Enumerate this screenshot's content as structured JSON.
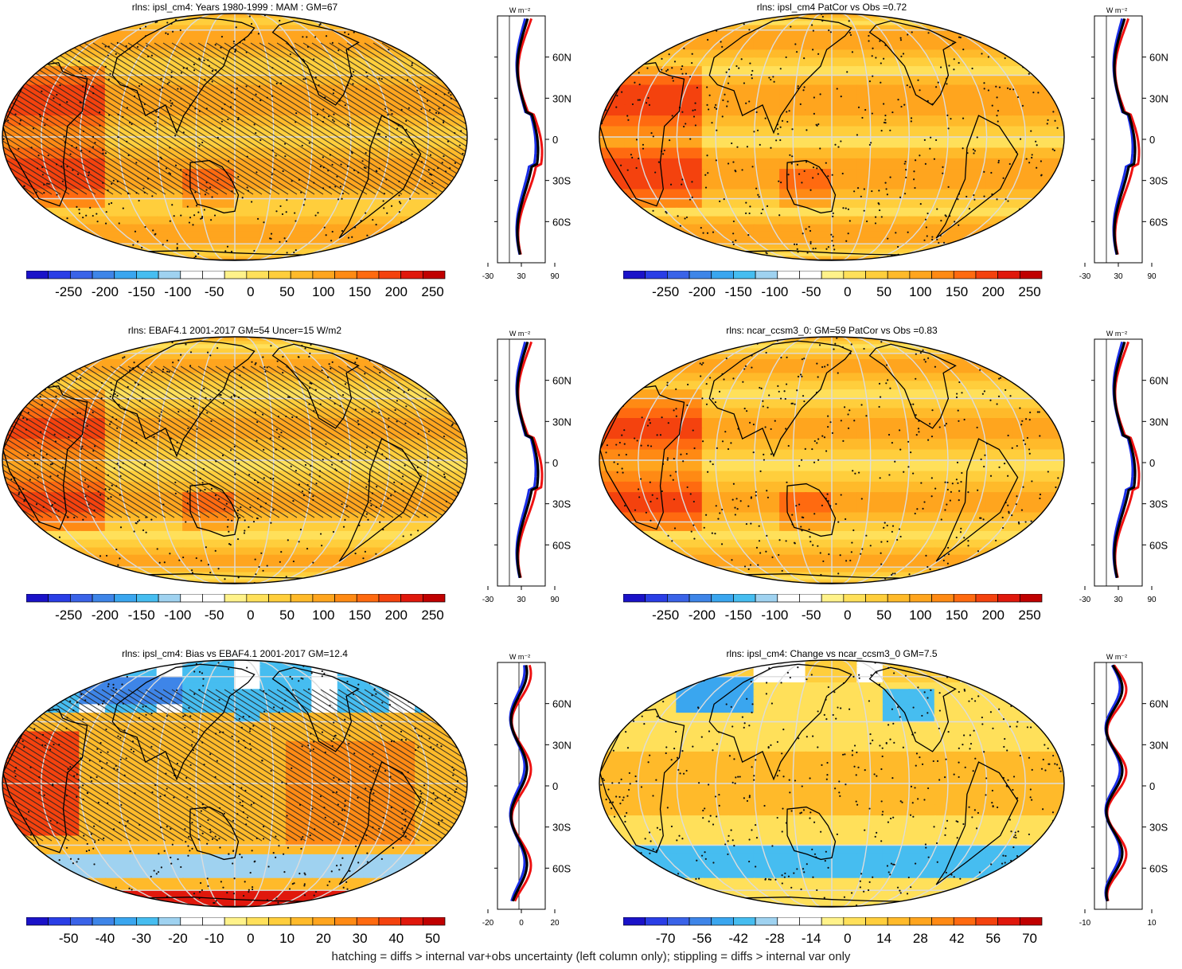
{
  "panels": [
    {
      "title": "rlns: ipsl_cm4: Years 1980-1999 : MAM : GM=67",
      "type": "clim",
      "hatch": true,
      "stipple": true,
      "profile_xticks": [
        "-30",
        "30",
        "90"
      ],
      "profile_kind": "clim",
      "colorbar": {
        "labels": [
          "-250",
          "-200",
          "-150",
          "-100",
          "-50",
          "0",
          "50",
          "100",
          "150",
          "200",
          "250"
        ]
      }
    },
    {
      "title": "rlns: ipsl_cm4 PatCor vs Obs =0.72",
      "type": "clim",
      "hatch": false,
      "stipple": true,
      "profile_xticks": [
        "-30",
        "30",
        "90"
      ],
      "profile_kind": "clim",
      "colorbar": {
        "labels": [
          "-250",
          "-200",
          "-150",
          "-100",
          "-50",
          "0",
          "50",
          "100",
          "150",
          "200",
          "250"
        ]
      }
    },
    {
      "title": "rlns: EBAF4.1 2001-2017 GM=54 Uncer=15 W/m2",
      "type": "clim",
      "hatch": true,
      "stipple": true,
      "profile_xticks": [
        "-30",
        "30",
        "90"
      ],
      "profile_kind": "clim",
      "colorbar": {
        "labels": [
          "-250",
          "-200",
          "-150",
          "-100",
          "-50",
          "0",
          "50",
          "100",
          "150",
          "200",
          "250"
        ]
      }
    },
    {
      "title": "rlns: ncar_ccsm3_0: GM=59 PatCor vs Obs =0.83",
      "type": "clim",
      "hatch": false,
      "stipple": true,
      "profile_xticks": [
        "-30",
        "30",
        "90"
      ],
      "profile_kind": "clim",
      "colorbar": {
        "labels": [
          "-250",
          "-200",
          "-150",
          "-100",
          "-50",
          "0",
          "50",
          "100",
          "150",
          "200",
          "250"
        ]
      }
    },
    {
      "title": "rlns: ipsl_cm4: Bias vs EBAF4.1 2001-2017 GM=12.4",
      "type": "bias",
      "hatch": true,
      "stipple": true,
      "profile_xticks": [
        "-20",
        "0",
        "20"
      ],
      "profile_kind": "bias",
      "colorbar": {
        "labels": [
          "-50",
          "-40",
          "-30",
          "-20",
          "-10",
          "0",
          "10",
          "20",
          "30",
          "40",
          "50"
        ]
      }
    },
    {
      "title": "rlns: ipsl_cm4: Change vs ncar_ccsm3_0 GM=7.5",
      "type": "change",
      "hatch": false,
      "stipple": true,
      "profile_xticks": [
        "-10",
        "10"
      ],
      "profile_kind": "change",
      "colorbar": {
        "labels": [
          "-70",
          "-56",
          "-42",
          "-28",
          "-14",
          "0",
          "14",
          "28",
          "42",
          "56",
          "70"
        ]
      }
    }
  ],
  "profile_unit": "W m⁻²",
  "lat_labels": [
    "60N",
    "30N",
    "0",
    "30S",
    "60S"
  ],
  "colors": {
    "scale": [
      "#1a12c8",
      "#2a3ee6",
      "#3a63e8",
      "#3e85e8",
      "#3aa6ef",
      "#46bdf0",
      "#9fd2f0",
      "#ffffff",
      "#ffffff",
      "#fff28a",
      "#ffe05a",
      "#ffce3c",
      "#ffba2a",
      "#ffa51e",
      "#ff8a14",
      "#ff6a10",
      "#f4420e",
      "#e0180c",
      "#c00000"
    ],
    "profile_blue": "#1a2ee8",
    "profile_red": "#ee1111",
    "profile_black": "#000000"
  },
  "footer": "hatching = diffs > internal var+obs uncertainty (left column only); stippling = diffs > internal var only"
}
